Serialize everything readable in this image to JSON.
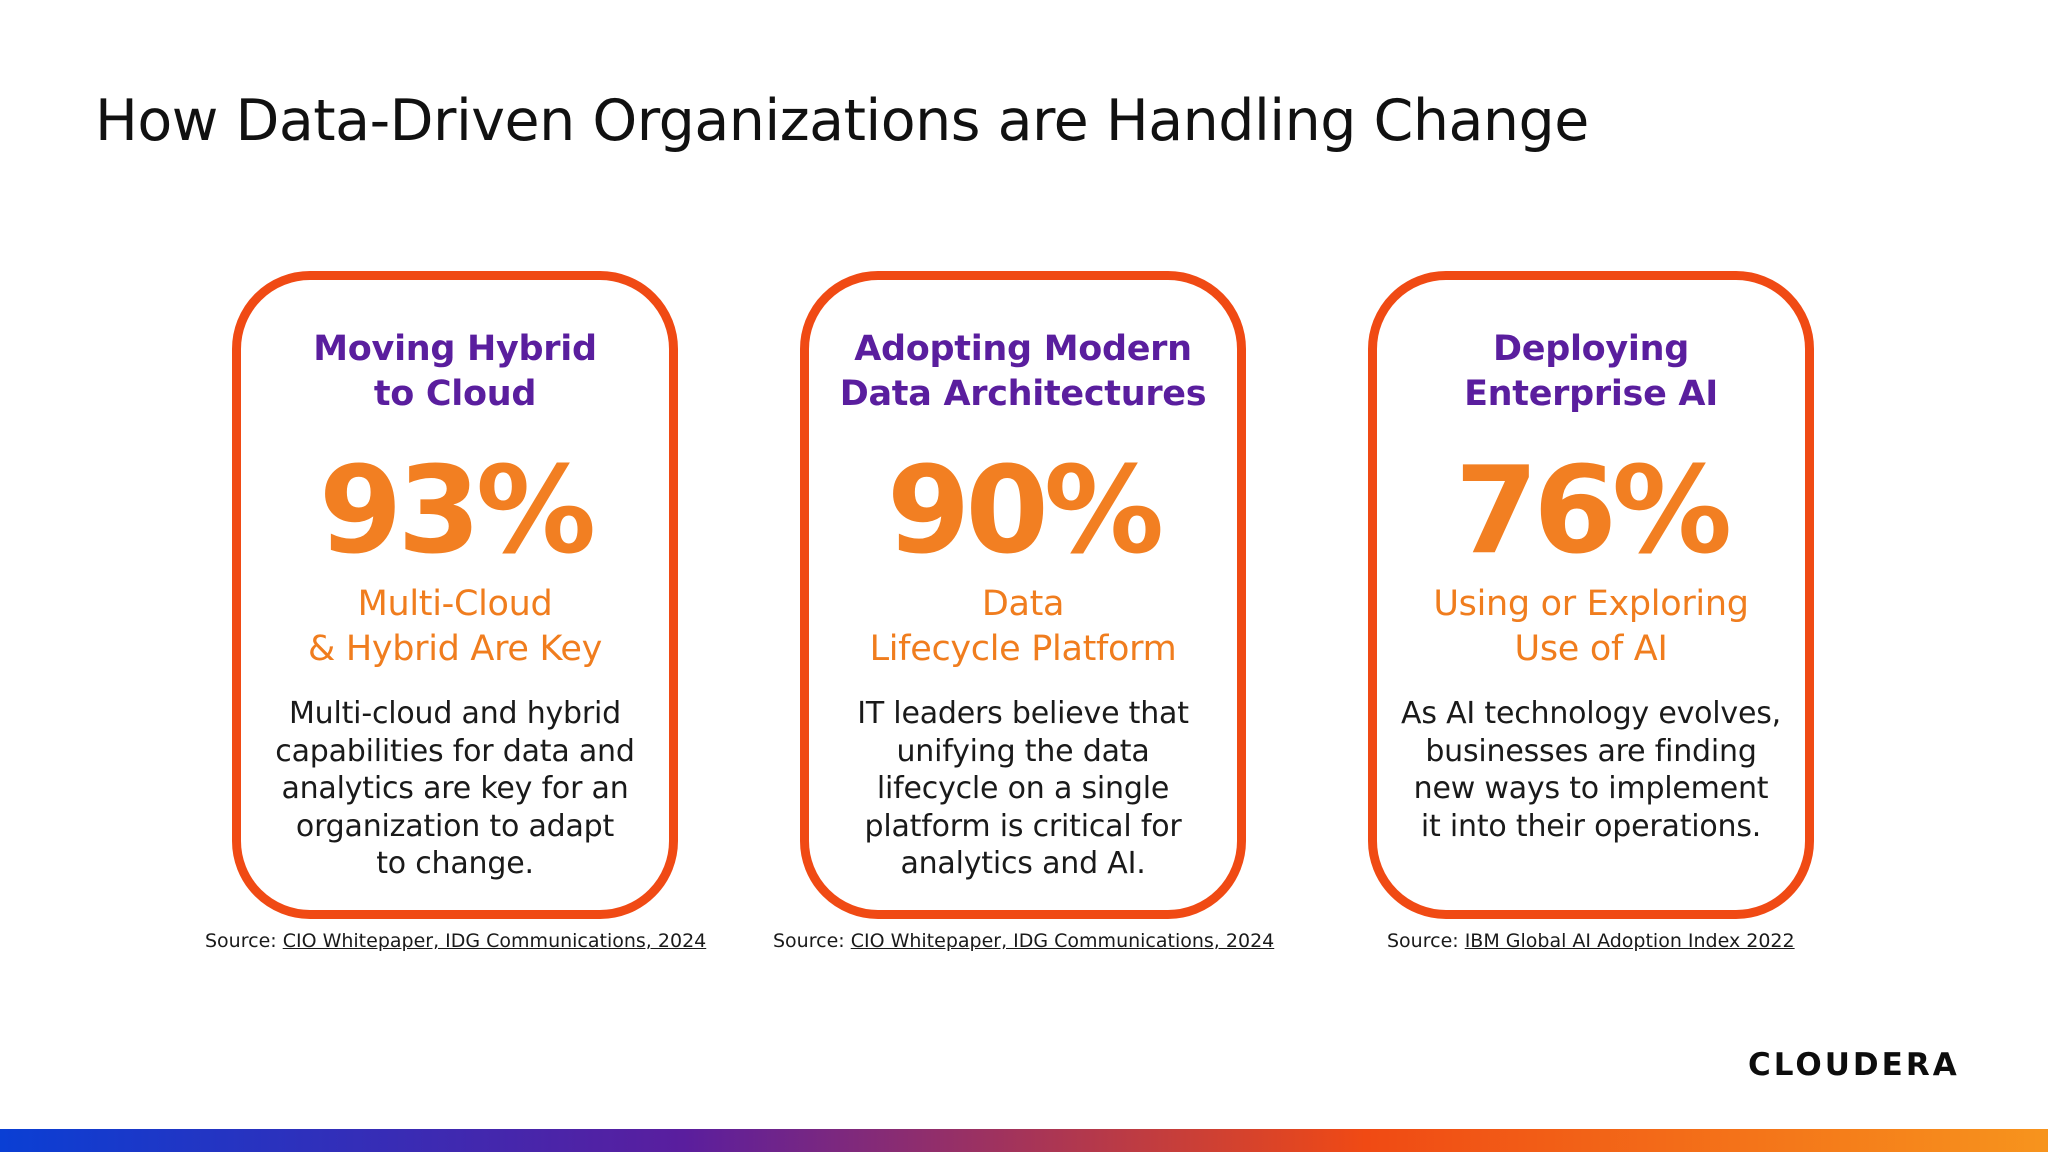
{
  "title": "How Data-Driven Organizations are Handling Change",
  "cards": [
    {
      "heading": [
        "Moving Hybrid",
        "to Cloud"
      ],
      "stat": "93%",
      "subtitle": [
        "Multi-Cloud",
        "& Hybrid Are Key"
      ],
      "body": [
        "Multi-cloud and hybrid",
        "capabilities for data and",
        "analytics are key for an",
        "organization to adapt",
        "to change."
      ],
      "source_prefix": "Source: ",
      "source_link": "CIO Whitepaper, IDG Communications, 2024"
    },
    {
      "heading": [
        "Adopting Modern",
        "Data Architectures"
      ],
      "stat": "90%",
      "subtitle": [
        "Data",
        "Lifecycle Platform"
      ],
      "body": [
        "IT leaders believe that",
        "unifying the data",
        "lifecycle on a single",
        "platform is critical for",
        "analytics and AI."
      ],
      "source_prefix": "Source: ",
      "source_link": "CIO Whitepaper, IDG Communications, 2024"
    },
    {
      "heading": [
        "Deploying",
        "Enterprise AI"
      ],
      "stat": "76%",
      "subtitle": [
        "Using or Exploring",
        "Use of AI"
      ],
      "body": [
        "As AI technology evolves,",
        "businesses are finding",
        "new ways to implement",
        "it into their operations."
      ],
      "source_prefix": "Source: ",
      "source_link": "IBM Global AI Adoption Index 2022"
    }
  ],
  "logo": "CLOUDERA",
  "colors": {
    "card_border": "#f04a14",
    "heading": "#5a1e9e",
    "stat": "#f27f22",
    "bar_gradient": [
      "#0a3fd4",
      "#5a1e9e",
      "#f04a14",
      "#f7941d"
    ]
  }
}
